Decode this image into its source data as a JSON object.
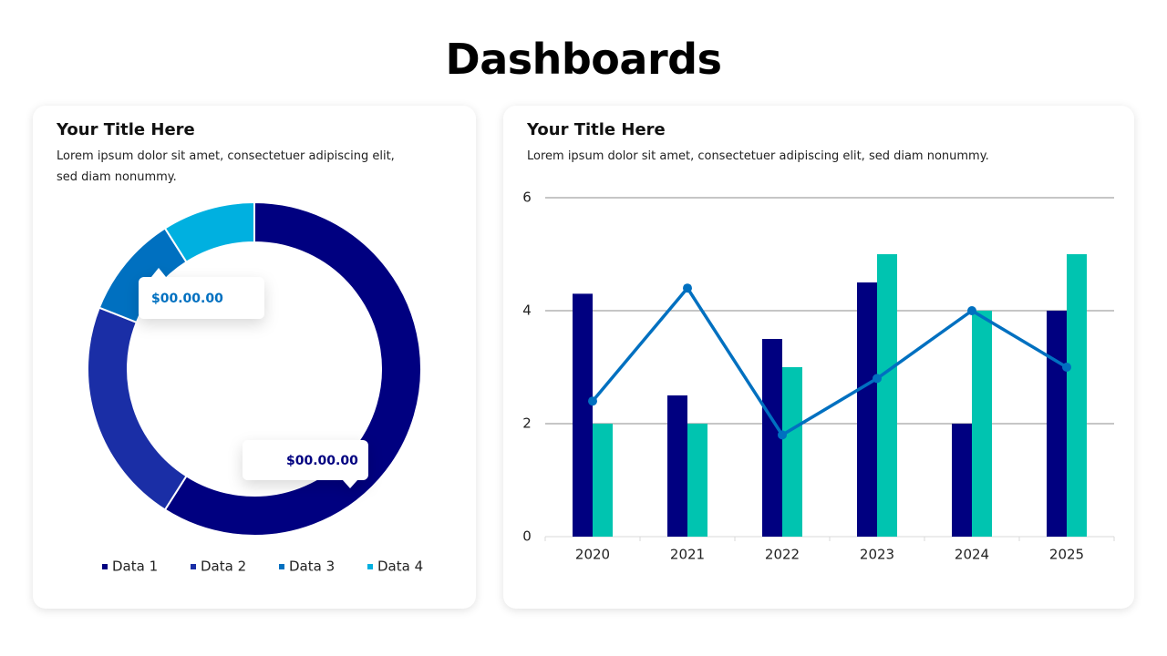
{
  "title": "Dashboards",
  "chart_data": [
    {
      "type": "pie",
      "donut": true,
      "title": "Your Title Here",
      "subtitle": "Lorem ipsum dolor sit amet, consectetuer adipiscing elit, sed diam nonummy.",
      "categories": [
        "Data 1",
        "Data 2",
        "Data 3",
        "Data 4"
      ],
      "values": [
        59,
        22,
        10,
        9
      ],
      "colors": [
        "#000080",
        "#1a2ea6",
        "#0070c0",
        "#00b0e0"
      ],
      "annotations": [
        "$00.00.00",
        "$00.00.00"
      ],
      "legend": "bottom"
    },
    {
      "type": "bar",
      "title": "Your Title Here",
      "subtitle": "Lorem ipsum dolor sit amet, consectetuer adipiscing elit, sed diam nonummy.",
      "categories": [
        "2020",
        "2021",
        "2022",
        "2023",
        "2024",
        "2025"
      ],
      "series": [
        {
          "type": "bar",
          "color": "#000080",
          "values": [
            4.3,
            2.5,
            3.5,
            4.5,
            2,
            4
          ]
        },
        {
          "type": "bar",
          "color": "#00c4b0",
          "values": [
            2,
            2,
            3,
            5,
            4,
            5
          ]
        },
        {
          "type": "line",
          "color": "#0070c0",
          "values": [
            2.4,
            4.4,
            1.8,
            2.8,
            4,
            3
          ]
        }
      ],
      "ylim": [
        0,
        6
      ],
      "yticks": [
        0,
        2,
        4,
        6
      ],
      "grid": true
    }
  ]
}
